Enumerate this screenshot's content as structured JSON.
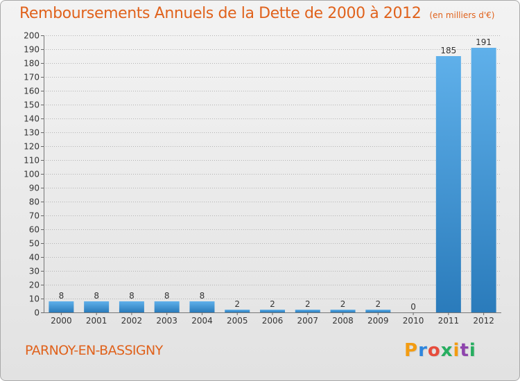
{
  "header": {
    "title": "Remboursements Annuels de la Dette de 2000 à 2012",
    "subtitle": "(en milliers d'€)"
  },
  "footer": {
    "commune": "PARNOY-EN-BASSIGNY",
    "logo": "Proxiti"
  },
  "colors": {
    "title": "#e0621c",
    "bar_top": "#5fb0ea",
    "bar_bottom": "#2a7bbb",
    "grid": "#b3b3b3"
  },
  "chart_data": {
    "type": "bar",
    "title": "Remboursements Annuels de la Dette de 2000 à 2012",
    "unit": "en milliers d'€",
    "categories": [
      "2000",
      "2001",
      "2002",
      "2003",
      "2004",
      "2005",
      "2006",
      "2007",
      "2008",
      "2009",
      "2010",
      "2011",
      "2012"
    ],
    "values": [
      8,
      8,
      8,
      8,
      8,
      2,
      2,
      2,
      2,
      2,
      0,
      185,
      191
    ],
    "ylim": [
      0,
      200
    ],
    "ytick_step": 10,
    "grid": true,
    "xlabel": "",
    "ylabel": ""
  }
}
